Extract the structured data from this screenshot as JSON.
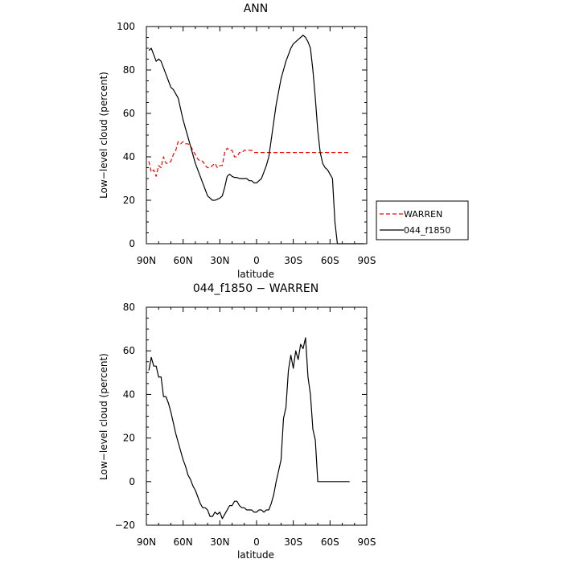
{
  "chart_data": [
    {
      "type": "line",
      "title": "ANN",
      "xlabel": "latitude",
      "ylabel": "Low−level cloud (percent)",
      "xlim": [
        90,
        -90
      ],
      "ylim": [
        0,
        100
      ],
      "xticks": [
        90,
        60,
        30,
        0,
        -30,
        -60,
        -90
      ],
      "xtick_labels": [
        "90N",
        "60N",
        "30N",
        "0",
        "30S",
        "60S",
        "90S"
      ],
      "yticks": [
        0,
        20,
        40,
        60,
        80,
        100
      ],
      "ytick_labels": [
        "0",
        "20",
        "40",
        "60",
        "80",
        "100"
      ],
      "grid": false,
      "legend": "outside-right",
      "series": [
        {
          "name": "WARREN",
          "color": "#ff0000",
          "style": "dashed",
          "x": [
            88,
            86,
            84,
            82,
            80,
            78,
            76,
            74,
            72,
            70,
            68,
            66,
            64,
            62,
            60,
            58,
            56,
            54,
            52,
            50,
            48,
            46,
            44,
            42,
            40,
            38,
            36,
            34,
            32,
            30,
            28,
            26,
            24,
            22,
            20,
            18,
            16,
            14,
            12,
            10,
            8,
            6,
            4,
            2,
            0,
            -2,
            -4,
            -6,
            -8,
            -10,
            -12,
            -14,
            -16,
            -18,
            -20,
            -22,
            -24,
            -26,
            -28,
            -30,
            -32,
            -34,
            -36,
            -38,
            -40,
            -42,
            -44,
            -46,
            -48,
            -50,
            -52,
            -54,
            -56,
            -58,
            -60,
            -62,
            -64,
            -66,
            -68,
            -70,
            -72,
            -74,
            -76
          ],
          "y": [
            38,
            33,
            34,
            31,
            36,
            35,
            40,
            37,
            37,
            38,
            41,
            43,
            47,
            46,
            47,
            46,
            46,
            45,
            43,
            41,
            39,
            38,
            38,
            36,
            35,
            35,
            36,
            37,
            35,
            36,
            36,
            42,
            44,
            43,
            43,
            40,
            40,
            42,
            42,
            43,
            43,
            43,
            43,
            42,
            42,
            42,
            42,
            42,
            42,
            42,
            42,
            42,
            42,
            42,
            42,
            42,
            42,
            42,
            42,
            42,
            42,
            42,
            42,
            42,
            42,
            42,
            42,
            42,
            42,
            42,
            42,
            42,
            42,
            42,
            42,
            42,
            42,
            42,
            42,
            42,
            42,
            42,
            42
          ]
        },
        {
          "name": "044_f1850",
          "color": "#000000",
          "style": "solid",
          "x": [
            88,
            86,
            84,
            82,
            80,
            78,
            76,
            74,
            72,
            70,
            68,
            66,
            64,
            62,
            60,
            58,
            56,
            54,
            52,
            50,
            48,
            46,
            44,
            42,
            40,
            38,
            36,
            34,
            32,
            30,
            28,
            26,
            24,
            22,
            20,
            18,
            16,
            14,
            12,
            10,
            8,
            6,
            4,
            2,
            0,
            -2,
            -4,
            -6,
            -8,
            -10,
            -12,
            -14,
            -16,
            -18,
            -20,
            -22,
            -24,
            -26,
            -28,
            -30,
            -32,
            -34,
            -36,
            -38,
            -40,
            -42,
            -44,
            -46,
            -48,
            -50,
            -52,
            -54,
            -56,
            -58,
            -60,
            -62,
            -64,
            -66,
            -68,
            -70,
            -72,
            -74,
            -76,
            -78,
            -80,
            -82,
            -84,
            -86,
            -88
          ],
          "y": [
            89,
            90,
            87,
            84,
            85,
            84,
            81,
            78,
            75,
            72,
            71,
            69,
            67,
            62,
            57,
            53,
            49,
            45,
            41,
            37,
            34,
            31,
            28,
            25,
            22,
            21,
            20,
            20,
            20.5,
            21,
            22,
            26,
            31,
            32,
            31,
            30.5,
            30.5,
            30,
            30,
            30,
            30,
            29,
            29,
            28,
            28,
            29,
            30,
            33,
            36,
            40,
            48,
            56,
            64,
            70,
            76,
            80,
            84,
            87,
            90,
            92,
            93,
            94,
            95,
            96,
            95,
            93,
            90,
            80,
            67,
            52,
            42,
            37,
            35,
            34,
            32,
            30,
            10,
            0,
            0,
            0,
            0,
            0,
            0,
            0,
            0,
            0,
            0,
            0,
            0
          ]
        }
      ]
    },
    {
      "type": "line",
      "title": "044_f1850 − WARREN",
      "xlabel": "latitude",
      "ylabel": "Low−level cloud (percent)",
      "xlim": [
        90,
        -90
      ],
      "ylim": [
        -20,
        80
      ],
      "xticks": [
        90,
        60,
        30,
        0,
        -30,
        -60,
        -90
      ],
      "xtick_labels": [
        "90N",
        "60N",
        "30N",
        "0",
        "30S",
        "60S",
        "90S"
      ],
      "yticks": [
        -20,
        0,
        20,
        40,
        60,
        80
      ],
      "ytick_labels": [
        "−20",
        "0",
        "20",
        "40",
        "60",
        "80"
      ],
      "grid": false,
      "series": [
        {
          "name": "",
          "color": "#000000",
          "style": "solid",
          "x": [
            88,
            86,
            84,
            82,
            80,
            78,
            76,
            74,
            72,
            70,
            68,
            66,
            64,
            62,
            60,
            58,
            56,
            54,
            52,
            50,
            48,
            46,
            44,
            42,
            40,
            38,
            36,
            34,
            32,
            30,
            28,
            26,
            24,
            22,
            20,
            18,
            16,
            14,
            12,
            10,
            8,
            6,
            4,
            2,
            0,
            -2,
            -4,
            -6,
            -8,
            -10,
            -12,
            -14,
            -16,
            -18,
            -20,
            -22,
            -24,
            -26,
            -28,
            -30,
            -32,
            -34,
            -36,
            -38,
            -40,
            -42,
            -44,
            -46,
            -48,
            -50,
            -52,
            -54,
            -56,
            -58,
            -60,
            -62,
            -64,
            -66,
            -68,
            -70,
            -72,
            -74,
            -76
          ],
          "y": [
            51,
            57,
            53,
            53,
            48,
            48,
            39,
            39,
            36,
            32,
            27,
            22,
            18,
            14,
            10,
            7,
            3,
            1,
            -2,
            -4,
            -7,
            -10,
            -12,
            -12,
            -13,
            -16,
            -16,
            -14,
            -15,
            -14,
            -17,
            -15,
            -13,
            -11,
            -11,
            -9,
            -9,
            -11,
            -12,
            -12,
            -13,
            -13,
            -13,
            -14,
            -14,
            -13,
            -13,
            -14,
            -13,
            -13,
            -10,
            -6,
            0,
            5,
            10,
            29,
            34,
            51,
            58,
            52,
            60,
            56,
            63,
            61,
            66,
            48,
            40,
            24,
            19,
            0,
            0,
            0,
            0,
            0,
            0,
            0,
            0,
            0,
            0,
            0,
            0,
            0,
            0
          ]
        }
      ]
    }
  ]
}
